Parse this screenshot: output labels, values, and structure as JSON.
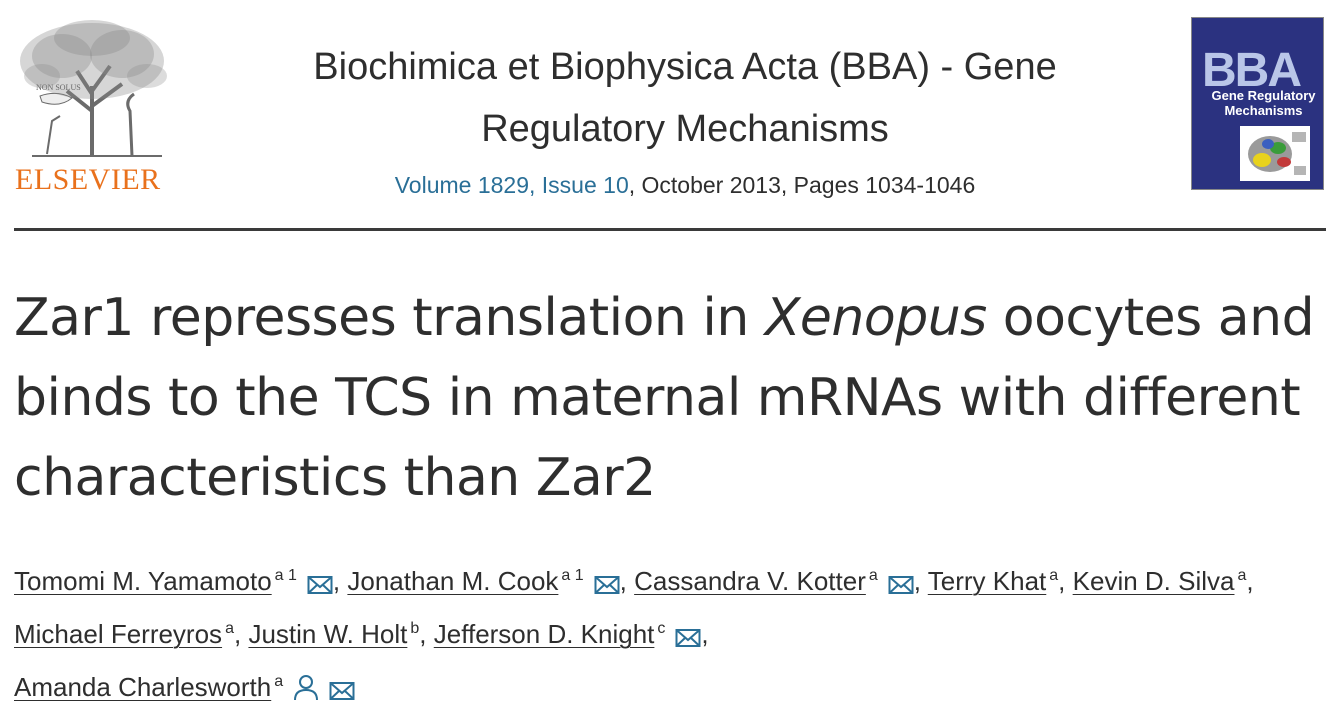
{
  "header": {
    "publisher_name": "ELSEVIER",
    "journal_title_line1": "Biochimica et Biophysica Acta (BBA) - Gene",
    "journal_title_line2": "Regulatory Mechanisms",
    "volume_issue": "Volume 1829, Issue 10",
    "date_pages": ", October 2013, Pages 1034-1046",
    "cover_mark": "BBA",
    "cover_subtitle": "Gene Regulatory Mechanisms"
  },
  "article": {
    "title_part1": "Zar1 represses translation in ",
    "title_italic": "Xenopus",
    "title_part2": " oocytes and binds to the TCS in maternal mRNAs with different characteristics than Zar2"
  },
  "authors": [
    {
      "name": "Tomomi M. Yamamoto",
      "aff": "a 1",
      "email": true,
      "sep": ","
    },
    {
      "name": "Jonathan M. Cook",
      "aff": "a 1",
      "email": true,
      "sep": ","
    },
    {
      "name": "Cassandra V. Kotter",
      "aff": "a",
      "email": true,
      "sep": ","
    },
    {
      "name": "Terry Khat",
      "aff": "a",
      "email": false,
      "sep": ","
    },
    {
      "name": "Kevin D. Silva",
      "aff": "a",
      "email": false,
      "sep": ","
    },
    {
      "name": "Michael Ferreyros",
      "aff": "a",
      "email": false,
      "sep": ","
    },
    {
      "name": "Justin W. Holt",
      "aff": "b",
      "email": false,
      "sep": ","
    },
    {
      "name": "Jefferson D. Knight",
      "aff": "c",
      "email": true,
      "sep": ","
    },
    {
      "name": "Amanda Charlesworth",
      "aff": "a",
      "email": true,
      "sep": ""
    }
  ],
  "colors": {
    "link": "#2a6f97",
    "publisher_orange": "#e9711c",
    "text": "#2e2e2e",
    "cover_blue": "#2b3280"
  },
  "icons": {
    "email": "envelope-icon",
    "corresponding": "person-icon"
  }
}
